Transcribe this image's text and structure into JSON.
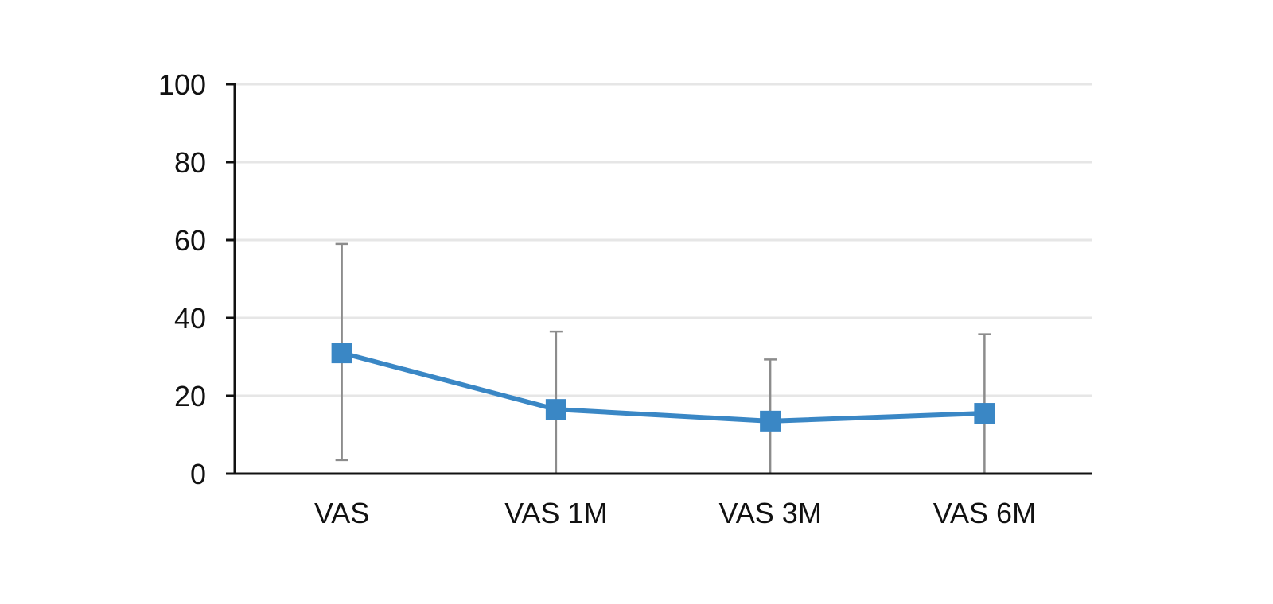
{
  "chart_data": {
    "type": "line",
    "categories": [
      "VAS",
      "VAS 1M",
      "VAS 3M",
      "VAS 6M"
    ],
    "series": [
      {
        "values": [
          31,
          16.5,
          13.5,
          15.5
        ],
        "error_upper": [
          59,
          36.5,
          29.3,
          35.8
        ],
        "error_lower": [
          3.5,
          0,
          0,
          0
        ],
        "color": "#3a87c5",
        "marker": "square"
      }
    ],
    "y_ticks": [
      "0",
      "20",
      "40",
      "60",
      "80",
      "100"
    ],
    "ylim": [
      0,
      100
    ],
    "title": "",
    "xlabel": "",
    "ylabel": "",
    "grid": true,
    "legend": "none",
    "colors": {
      "line": "#3a87c5",
      "grid": "#e6e6e6",
      "axis": "#111111",
      "error_bar": "#8c8c8c"
    }
  }
}
